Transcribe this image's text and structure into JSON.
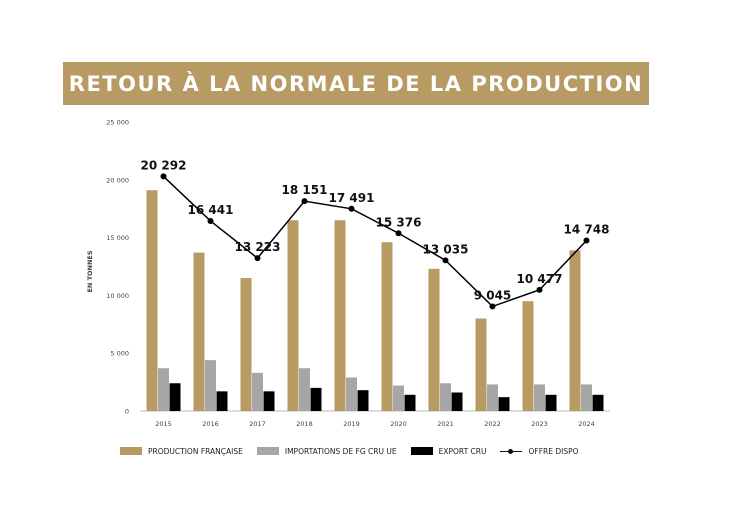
{
  "title": "RETOUR À LA NORMALE DE LA PRODUCTION",
  "colors": {
    "banner": "#b89a63",
    "production": "#b89a63",
    "importations": "#a6a6a6",
    "export": "#000000",
    "offre": "#000000"
  },
  "chart_data": {
    "type": "bar",
    "title": "RETOUR À LA NORMALE DE LA PRODUCTION",
    "ylabel": "EN TONNES",
    "xlabel": "",
    "ylim": [
      0,
      25000
    ],
    "yticks": [
      0,
      5000,
      10000,
      15000,
      20000,
      25000
    ],
    "ytick_labels": [
      "0",
      "5 000",
      "10 000",
      "15 000",
      "20 000",
      "25 000"
    ],
    "grid": false,
    "legend_position": "bottom",
    "categories": [
      "2015",
      "2016",
      "2017",
      "2018",
      "2019",
      "2020",
      "2021",
      "2022",
      "2023",
      "2024"
    ],
    "series": [
      {
        "name": "PRODUCTION FRANÇAISE",
        "type": "bar",
        "color": "#b89a63",
        "values": [
          19100,
          13700,
          11500,
          16500,
          16500,
          14600,
          12300,
          8000,
          9500,
          13900
        ]
      },
      {
        "name": "IMPORTATIONS DE FG CRU UE",
        "type": "bar",
        "color": "#a6a6a6",
        "values": [
          3700,
          4400,
          3300,
          3700,
          2900,
          2200,
          2400,
          2300,
          2300,
          2300
        ]
      },
      {
        "name": "EXPORT CRU",
        "type": "bar",
        "color": "#000000",
        "values": [
          2400,
          1700,
          1700,
          2000,
          1800,
          1400,
          1600,
          1200,
          1400,
          1400
        ]
      },
      {
        "name": "OFFRE DISPO",
        "type": "line",
        "color": "#000000",
        "values": [
          20292,
          16441,
          13223,
          18151,
          17491,
          15376,
          13035,
          9045,
          10477,
          14748
        ],
        "labels": [
          "20 292",
          "16 441",
          "13 223",
          "18 151",
          "17 491",
          "15 376",
          "13 035",
          "9 045",
          "10 477",
          "14 748"
        ]
      }
    ]
  }
}
